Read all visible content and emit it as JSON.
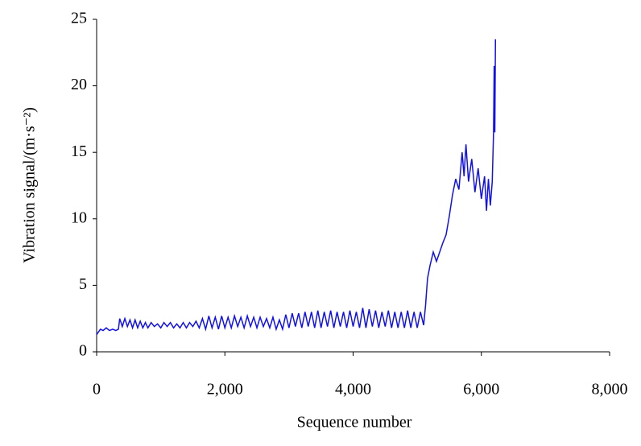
{
  "chart_data": {
    "type": "line",
    "x_label": "Sequence number",
    "y_label": "Vibration signal/(m·s⁻²)",
    "x": [
      0,
      30,
      60,
      100,
      150,
      200,
      250,
      300,
      340,
      360,
      400,
      440,
      480,
      520,
      560,
      600,
      640,
      680,
      720,
      760,
      800,
      850,
      900,
      950,
      1000,
      1050,
      1100,
      1150,
      1200,
      1250,
      1300,
      1350,
      1400,
      1450,
      1500,
      1550,
      1600,
      1650,
      1700,
      1750,
      1800,
      1850,
      1900,
      1950,
      2000,
      2050,
      2100,
      2150,
      2200,
      2250,
      2300,
      2350,
      2400,
      2450,
      2500,
      2550,
      2600,
      2650,
      2700,
      2750,
      2800,
      2850,
      2900,
      2950,
      3000,
      3050,
      3100,
      3150,
      3200,
      3250,
      3300,
      3350,
      3400,
      3450,
      3500,
      3550,
      3600,
      3650,
      3700,
      3750,
      3800,
      3850,
      3900,
      3950,
      4000,
      4050,
      4100,
      4150,
      4200,
      4250,
      4300,
      4350,
      4400,
      4450,
      4500,
      4550,
      4600,
      4650,
      4700,
      4750,
      4800,
      4850,
      4900,
      4950,
      5000,
      5050,
      5100,
      5130,
      5160,
      5200,
      5250,
      5300,
      5350,
      5400,
      5450,
      5500,
      5550,
      5600,
      5650,
      5700,
      5730,
      5760,
      5800,
      5850,
      5900,
      5950,
      6000,
      6050,
      6080,
      6110,
      6140,
      6170,
      6190,
      6200,
      6210,
      6220
    ],
    "series": [
      {
        "color": "#1010f0",
        "values": [
          1.3,
          1.5,
          1.7,
          1.6,
          1.8,
          1.6,
          1.7,
          1.6,
          1.7,
          2.5,
          1.9,
          2.5,
          1.9,
          2.4,
          1.8,
          2.4,
          1.8,
          2.3,
          1.8,
          2.2,
          1.8,
          2.2,
          1.9,
          2.1,
          1.8,
          2.2,
          1.9,
          2.2,
          1.8,
          2.1,
          1.8,
          2.2,
          1.8,
          2.2,
          1.9,
          2.3,
          1.8,
          2.5,
          1.7,
          2.7,
          1.8,
          2.6,
          1.7,
          2.7,
          1.8,
          2.6,
          1.8,
          2.7,
          1.9,
          2.6,
          1.8,
          2.7,
          1.9,
          2.6,
          1.8,
          2.6,
          1.9,
          2.5,
          1.8,
          2.6,
          1.7,
          2.4,
          1.7,
          2.8,
          1.8,
          2.9,
          1.9,
          2.9,
          1.8,
          3.0,
          1.9,
          3.0,
          1.8,
          3.1,
          1.8,
          3.0,
          1.9,
          3.1,
          1.8,
          3.0,
          1.9,
          3.0,
          1.8,
          3.1,
          1.9,
          3.0,
          1.8,
          3.3,
          1.8,
          3.2,
          1.9,
          3.1,
          1.8,
          3.0,
          1.9,
          3.1,
          1.8,
          3.0,
          1.8,
          3.0,
          1.8,
          3.1,
          1.8,
          3.0,
          1.8,
          3.0,
          2.0,
          3.5,
          5.5,
          6.5,
          7.5,
          6.8,
          7.5,
          8.2,
          8.8,
          10.2,
          11.8,
          13.0,
          12.2,
          15.0,
          13.2,
          15.6,
          12.8,
          14.5,
          12.0,
          13.8,
          11.5,
          13.2,
          10.6,
          13.0,
          11.0,
          12.8,
          16.5,
          21.5,
          16.5,
          23.5
        ]
      }
    ],
    "xlim": [
      0,
      8000
    ],
    "xticks": [
      0,
      {
        "value": 2000,
        "label": "2,000"
      },
      {
        "value": 4000,
        "label": "4,000"
      },
      {
        "value": 6000,
        "label": "6,000"
      },
      {
        "value": 8000,
        "label": "8,000"
      }
    ],
    "ylim": [
      0,
      25
    ],
    "yticks": [
      0,
      5,
      10,
      15,
      20,
      25
    ],
    "grid": false
  }
}
